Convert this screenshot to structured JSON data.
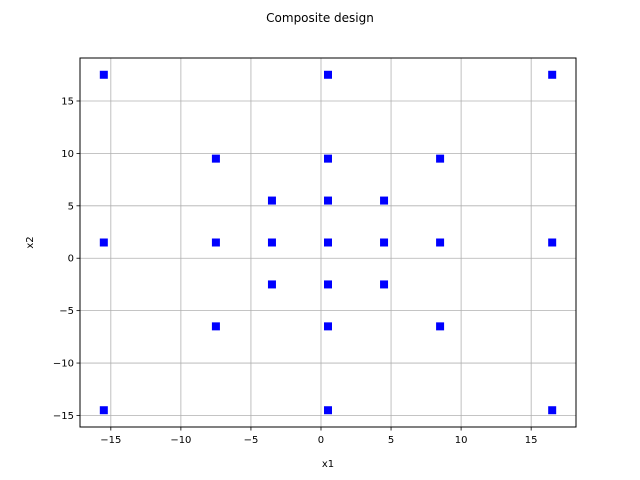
{
  "chart_data": {
    "type": "scatter",
    "title": "Composite design",
    "xlabel": "x1",
    "ylabel": "x2",
    "xlim": [
      -17.2,
      18.2
    ],
    "ylim": [
      -16.1,
      19.1
    ],
    "xticks": [
      -15,
      -10,
      -5,
      0,
      5,
      10,
      15
    ],
    "yticks": [
      -15,
      -10,
      -5,
      0,
      5,
      10,
      15
    ],
    "xtick_labels": [
      "−15",
      "−10",
      "−5",
      "0",
      "5",
      "10",
      "15"
    ],
    "ytick_labels": [
      "−15",
      "−10",
      "−5",
      "0",
      "5",
      "10",
      "15"
    ],
    "grid": true,
    "marker": "square",
    "marker_color": "#0000ff",
    "series": [
      {
        "x": [
          -15.5,
          0.5,
          16.5,
          -7.5,
          0.5,
          8.5,
          -3.5,
          0.5,
          4.5,
          -15.5,
          -7.5,
          -3.5,
          0.5,
          4.5,
          8.5,
          16.5,
          -3.5,
          0.5,
          4.5,
          -7.5,
          0.5,
          8.5,
          -15.5,
          0.5,
          16.5
        ],
        "y": [
          17.5,
          17.5,
          17.5,
          9.5,
          9.5,
          9.5,
          5.5,
          5.5,
          5.5,
          1.5,
          1.5,
          1.5,
          1.5,
          1.5,
          1.5,
          1.5,
          -2.5,
          -2.5,
          -2.5,
          -6.5,
          -6.5,
          -6.5,
          -14.5,
          -14.5,
          -14.5
        ]
      }
    ]
  }
}
